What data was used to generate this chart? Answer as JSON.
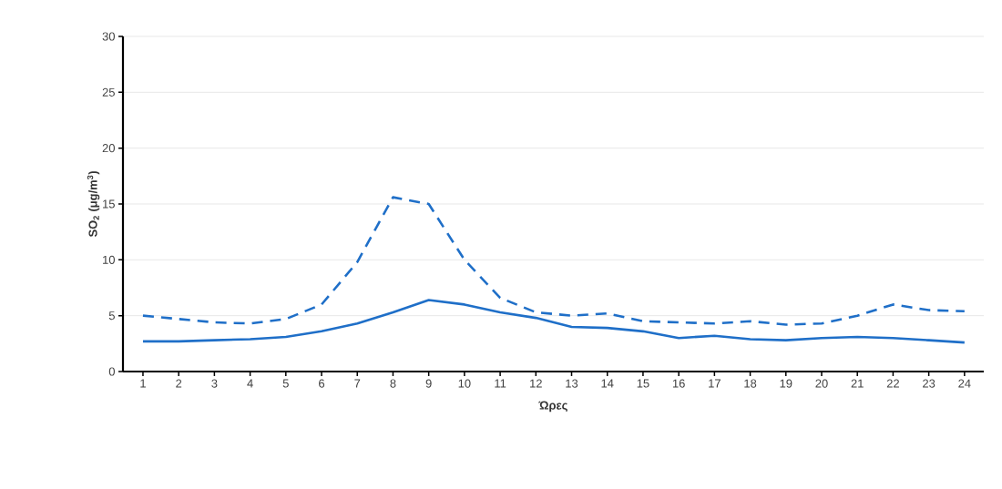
{
  "chart_data": {
    "type": "line",
    "xlabel": "Ώρες",
    "ylabel": "SO$_{2}$ (μg/m$^{3}$)",
    "categories": [
      "1",
      "2",
      "3",
      "4",
      "5",
      "6",
      "7",
      "8",
      "9",
      "10",
      "11",
      "12",
      "13",
      "14",
      "15",
      "16",
      "17",
      "18",
      "19",
      "20",
      "21",
      "22",
      "23",
      "24"
    ],
    "series": [
      {
        "color": "#1f6fc8",
        "line_style": "dashed",
        "values": [
          5.0,
          4.7,
          4.4,
          4.3,
          4.7,
          6.0,
          9.8,
          15.6,
          15.0,
          10.0,
          6.6,
          5.3,
          5.0,
          5.2,
          4.5,
          4.4,
          4.3,
          4.5,
          4.2,
          4.3,
          5.0,
          6.0,
          5.5,
          5.4
        ]
      },
      {
        "color": "#1f6fc8",
        "line_style": "solid",
        "values": [
          2.7,
          2.7,
          2.8,
          2.9,
          3.1,
          3.6,
          4.3,
          5.3,
          6.4,
          6.0,
          5.3,
          4.8,
          4.0,
          3.9,
          3.6,
          3.0,
          3.2,
          2.9,
          2.8,
          3.0,
          3.1,
          3.0,
          2.8,
          2.6
        ]
      }
    ],
    "ylim": [
      0,
      30
    ],
    "yticks": [
      0,
      5,
      10,
      15,
      20,
      25,
      30
    ],
    "grid": "y"
  }
}
